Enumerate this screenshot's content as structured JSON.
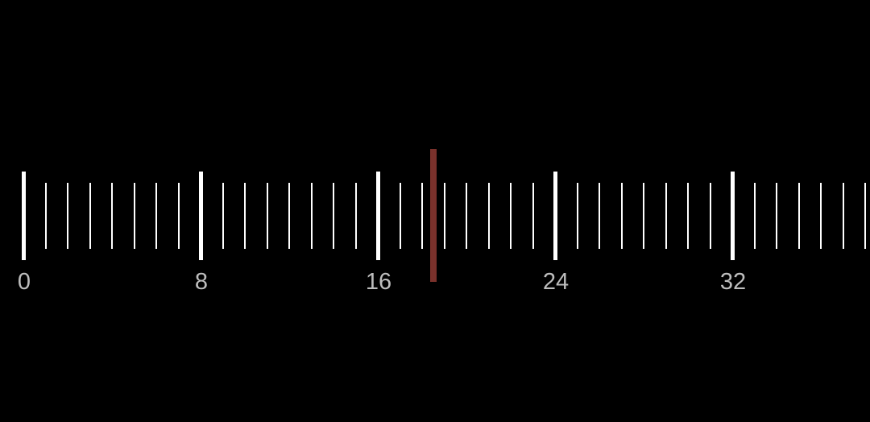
{
  "ruler": {
    "min": 0,
    "max": 38,
    "visible_labels": [
      "0",
      "8",
      "16",
      "24",
      "32"
    ],
    "major_every": 8,
    "current_value": 18.5,
    "tick_color": "#ffffff",
    "label_color": "#bdbdbd",
    "indicator_color": "#7a312b"
  }
}
